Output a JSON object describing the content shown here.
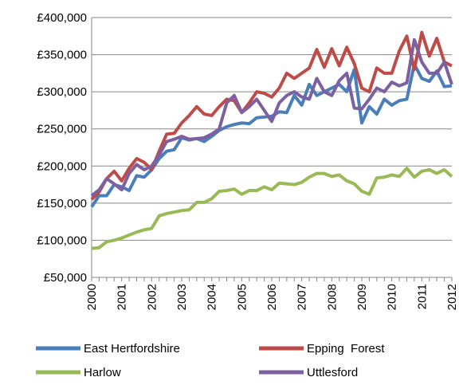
{
  "chart_data": {
    "type": "line",
    "categories": [
      "2000",
      null,
      null,
      null,
      "2001",
      null,
      null,
      null,
      "2002",
      null,
      null,
      null,
      "2003",
      null,
      null,
      null,
      "2004",
      null,
      null,
      null,
      "2005",
      null,
      null,
      null,
      "2006",
      null,
      null,
      null,
      "2007",
      null,
      null,
      null,
      "2008",
      null,
      null,
      null,
      "2009",
      null,
      null,
      null,
      "2010",
      null,
      null,
      null,
      "2011",
      null,
      null,
      null,
      "2012"
    ],
    "series": [
      {
        "name": "East Hertfordshire",
        "color": "#4a7ebb",
        "values": [
          145000,
          160000,
          160000,
          175000,
          172000,
          167000,
          187000,
          185000,
          195000,
          210000,
          220000,
          222000,
          238000,
          235000,
          237000,
          233000,
          240000,
          248000,
          253000,
          256000,
          258000,
          257000,
          265000,
          266000,
          267000,
          273000,
          272000,
          295000,
          282000,
          310000,
          295000,
          300000,
          305000,
          310000,
          300000,
          330000,
          258000,
          280000,
          270000,
          290000,
          282000,
          288000,
          290000,
          337000,
          318000,
          314000,
          328000,
          307000,
          308000
        ]
      },
      {
        "name": "Epping  Forest",
        "color": "#be4b48",
        "values": [
          155000,
          165000,
          183000,
          193000,
          180000,
          197000,
          210000,
          205000,
          195000,
          220000,
          243000,
          244000,
          258000,
          268000,
          280000,
          270000,
          268000,
          280000,
          290000,
          288000,
          272000,
          285000,
          300000,
          298000,
          293000,
          305000,
          325000,
          318000,
          325000,
          332000,
          357000,
          333000,
          358000,
          335000,
          360000,
          338000,
          305000,
          300000,
          332000,
          325000,
          325000,
          355000,
          375000,
          330000,
          380000,
          348000,
          372000,
          340000,
          335000
        ]
      },
      {
        "name": "Harlow",
        "color": "#98b954",
        "values": [
          89000,
          90000,
          98000,
          100000,
          103000,
          107000,
          111000,
          114000,
          116000,
          133000,
          136000,
          138000,
          140000,
          141000,
          151000,
          151000,
          156000,
          166000,
          167000,
          169000,
          162000,
          167000,
          167000,
          172000,
          168000,
          177000,
          176000,
          175000,
          178000,
          185000,
          190000,
          190000,
          186000,
          188000,
          180000,
          176000,
          166000,
          162000,
          184000,
          185000,
          188000,
          186000,
          197000,
          185000,
          193000,
          195000,
          190000,
          195000,
          186000
        ]
      },
      {
        "name": "Uttlesford",
        "color": "#7d60a0",
        "values": [
          160000,
          168000,
          183000,
          176000,
          168000,
          190000,
          202000,
          195000,
          200000,
          215000,
          233000,
          236000,
          240000,
          236000,
          237000,
          238000,
          243000,
          250000,
          285000,
          295000,
          272000,
          280000,
          290000,
          275000,
          260000,
          285000,
          295000,
          300000,
          293000,
          290000,
          318000,
          300000,
          295000,
          315000,
          325000,
          278000,
          277000,
          290000,
          305000,
          300000,
          313000,
          308000,
          312000,
          370000,
          340000,
          325000,
          325000,
          340000,
          310000
        ]
      }
    ],
    "ylim": [
      50000,
      400000
    ],
    "yticks": [
      {
        "value": 50000,
        "label": "£50,000"
      },
      {
        "value": 100000,
        "label": "£100,000"
      },
      {
        "value": 150000,
        "label": "£150,000"
      },
      {
        "value": 200000,
        "label": "£200,000"
      },
      {
        "value": 250000,
        "label": "£250,000"
      },
      {
        "value": 300000,
        "label": "£300,000"
      },
      {
        "value": 350000,
        "label": "£350,000"
      },
      {
        "value": 400000,
        "label": "£400,000"
      }
    ],
    "grid": true
  }
}
